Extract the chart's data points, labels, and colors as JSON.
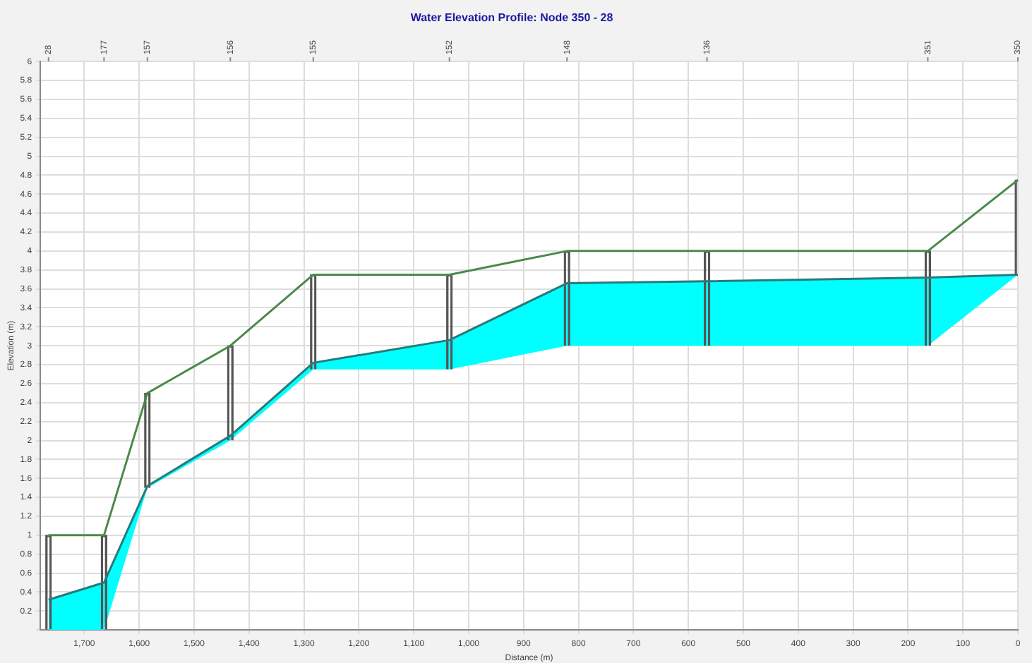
{
  "chart_data": {
    "type": "line",
    "title": "Water Elevation Profile: Node 350 - 28",
    "xlabel": "Distance (m)",
    "ylabel": "Elevation (m)",
    "x": [
      1765,
      1664,
      1585,
      1434,
      1283,
      1035,
      821,
      566,
      164,
      0
    ],
    "series": [
      {
        "color": "#4a8a4a",
        "values": [
          1.0,
          1.0,
          2.5,
          3.0,
          3.75,
          3.75,
          4.0,
          4.0,
          4.0,
          4.75
        ]
      },
      {
        "color": "#2a7a7a",
        "values": [
          0.32,
          0.5,
          1.52,
          2.05,
          2.82,
          3.06,
          3.66,
          3.68,
          3.72,
          3.75
        ],
        "lower": [
          0,
          0,
          1.5,
          2.0,
          2.75,
          2.75,
          3.0,
          3.0,
          3.0,
          3.75
        ],
        "upper": [
          0.32,
          0.5,
          1.52,
          2.05,
          2.82,
          3.06,
          3.66,
          3.68,
          3.72,
          3.75
        ]
      },
      {
        "type": "bar",
        "color": "#555555",
        "base": [
          0,
          0,
          1.5,
          2.0,
          2.75,
          2.75,
          3.0,
          3.0,
          3.0,
          3.75
        ],
        "values": [
          1,
          1,
          1,
          1,
          1,
          1,
          1,
          1,
          1,
          1
        ]
      }
    ],
    "xlim": [
      1780,
      0
    ],
    "xticks": [
      {
        "value": 1700,
        "label": "1,700"
      },
      {
        "value": 1600,
        "label": "1,600"
      },
      {
        "value": 1500,
        "label": "1,500"
      },
      {
        "value": 1400,
        "label": "1,400"
      },
      {
        "value": 1300,
        "label": "1,300"
      },
      {
        "value": 1200,
        "label": "1,200"
      },
      {
        "value": 1100,
        "label": "1,100"
      },
      {
        "value": 1000,
        "label": "1,000"
      },
      900,
      800,
      700,
      600,
      500,
      400,
      300,
      200,
      100,
      0
    ],
    "annotations": [
      "28",
      "177",
      "157",
      "156",
      "155",
      "152",
      "148",
      "136",
      "351",
      "350"
    ],
    "ylim": [
      0,
      6
    ],
    "yticks": [
      {
        "value": 0,
        "label": null
      },
      0.2,
      0.4,
      0.6,
      0.8,
      1,
      1.2,
      1.4,
      1.6,
      1.8,
      2,
      2.2,
      2.4,
      2.6,
      2.8,
      3,
      3.2,
      3.4,
      3.6,
      3.8,
      4,
      4.2,
      4.4,
      4.6,
      4.8,
      5,
      5.2,
      5.4,
      5.6,
      5.8,
      6
    ],
    "grid": true,
    "legend": false,
    "marker": "none",
    "line_style": "solid"
  }
}
